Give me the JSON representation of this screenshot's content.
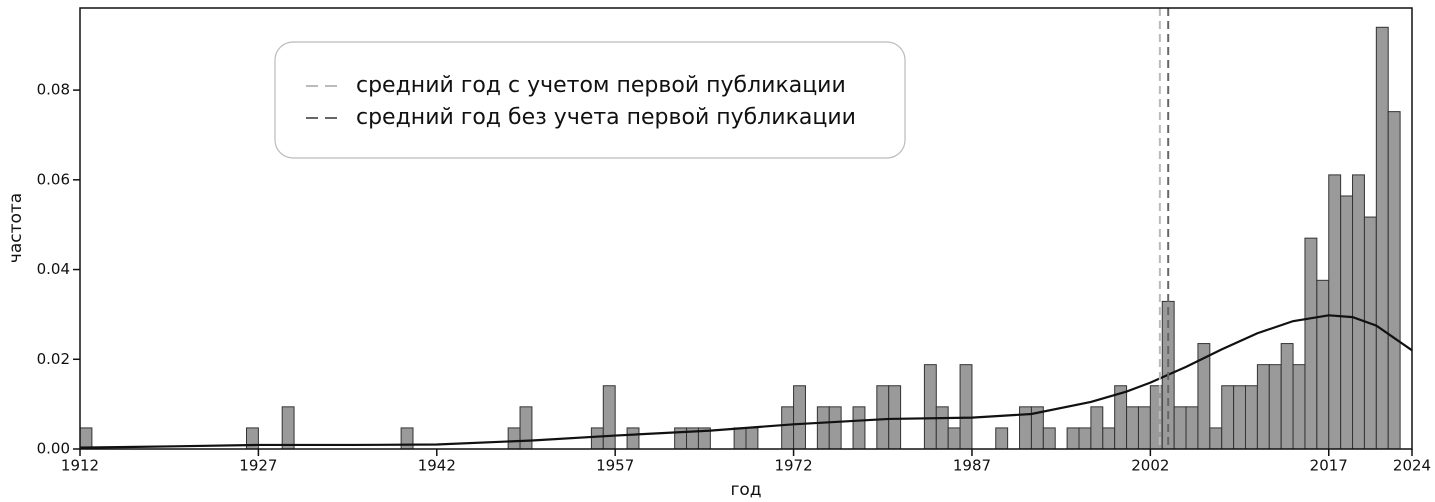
{
  "chart_data": {
    "type": "histogram",
    "xlabel": "год",
    "ylabel": "частота",
    "bins": [
      1912,
      1913,
      1914,
      1915,
      1916,
      1917,
      1918,
      1919,
      1920,
      1921,
      1922,
      1923,
      1924,
      1925,
      1926,
      1927,
      1928,
      1929,
      1930,
      1931,
      1932,
      1933,
      1934,
      1935,
      1936,
      1937,
      1938,
      1939,
      1940,
      1941,
      1942,
      1943,
      1944,
      1945,
      1946,
      1947,
      1948,
      1949,
      1950,
      1951,
      1952,
      1953,
      1954,
      1955,
      1956,
      1957,
      1958,
      1959,
      1960,
      1961,
      1962,
      1963,
      1964,
      1965,
      1966,
      1967,
      1968,
      1969,
      1970,
      1971,
      1972,
      1973,
      1974,
      1975,
      1976,
      1977,
      1978,
      1979,
      1980,
      1981,
      1982,
      1983,
      1984,
      1985,
      1986,
      1987,
      1988,
      1989,
      1990,
      1991,
      1992,
      1993,
      1994,
      1995,
      1996,
      1997,
      1998,
      1999,
      2000,
      2001,
      2002,
      2003,
      2004,
      2005,
      2006,
      2007,
      2008,
      2009,
      2010,
      2011,
      2012,
      2013,
      2014,
      2015,
      2016,
      2017,
      2018,
      2019,
      2020,
      2021,
      2022,
      2023,
      2024
    ],
    "values": [
      0.0047,
      0,
      0,
      0,
      0,
      0,
      0,
      0,
      0,
      0,
      0,
      0,
      0,
      0,
      0.0047,
      0,
      0,
      0.0094,
      0,
      0,
      0,
      0,
      0,
      0,
      0,
      0,
      0,
      0.0047,
      0,
      0,
      0,
      0,
      0,
      0,
      0,
      0,
      0.0047,
      0.0094,
      0,
      0,
      0,
      0,
      0,
      0.0047,
      0.0141,
      0,
      0.0047,
      0,
      0,
      0,
      0.0047,
      0.0047,
      0.0047,
      0,
      0,
      0.0047,
      0.0047,
      0,
      0,
      0.0094,
      0.0141,
      0,
      0.0094,
      0.0094,
      0,
      0.0094,
      0,
      0.0141,
      0.0141,
      0,
      0,
      0.0188,
      0.0094,
      0.0047,
      0.0188,
      0,
      0,
      0.0047,
      0,
      0.0094,
      0.0094,
      0.0047,
      0,
      0.0047,
      0.0047,
      0.0094,
      0.0047,
      0.0141,
      0.0094,
      0.0094,
      0.0141,
      0.0329,
      0.0094,
      0.0094,
      0.0235,
      0.0047,
      0.0141,
      0.0141,
      0.0141,
      0.0188,
      0.0188,
      0.0235,
      0.0188,
      0.047,
      0.0376,
      0.0611,
      0.0564,
      0.0611,
      0.0517,
      0.094,
      0.0752,
      0
    ],
    "color": "#9a9a9a",
    "edgecolor": "#333333",
    "kde": {
      "color": "#111111",
      "x": [
        1912,
        1920,
        1927,
        1935,
        1942,
        1950,
        1957,
        1965,
        1972,
        1980,
        1987,
        1992,
        1997,
        2000,
        2002,
        2005,
        2008,
        2011,
        2014,
        2017,
        2019,
        2021,
        2024
      ],
      "values": [
        0.0003,
        0.0006,
        0.0009,
        0.0009,
        0.001,
        0.0019,
        0.003,
        0.0041,
        0.0055,
        0.0067,
        0.007,
        0.0078,
        0.0105,
        0.0128,
        0.0148,
        0.0183,
        0.0222,
        0.0258,
        0.0285,
        0.0298,
        0.0294,
        0.0275,
        0.022
      ]
    },
    "vlines": [
      {
        "name": "средний год с учетом первой публикации",
        "value": 2002.8,
        "color": "#bbbbbb"
      },
      {
        "name": "средний год без учета первой публикации",
        "value": 2003.5,
        "color": "#666666"
      }
    ],
    "xlim": [
      1912,
      2024
    ],
    "xticks": [
      1912,
      1927,
      1942,
      1957,
      1972,
      1987,
      2002,
      2017,
      2024
    ],
    "ylim": [
      0,
      0.0983
    ],
    "yticks": [
      {
        "value": 0,
        "label": "0.00"
      },
      {
        "value": 0.02,
        "label": "0.02"
      },
      {
        "value": 0.04,
        "label": "0.04"
      },
      {
        "value": 0.06,
        "label": "0.06"
      },
      {
        "value": 0.08,
        "label": "0.08"
      }
    ]
  }
}
